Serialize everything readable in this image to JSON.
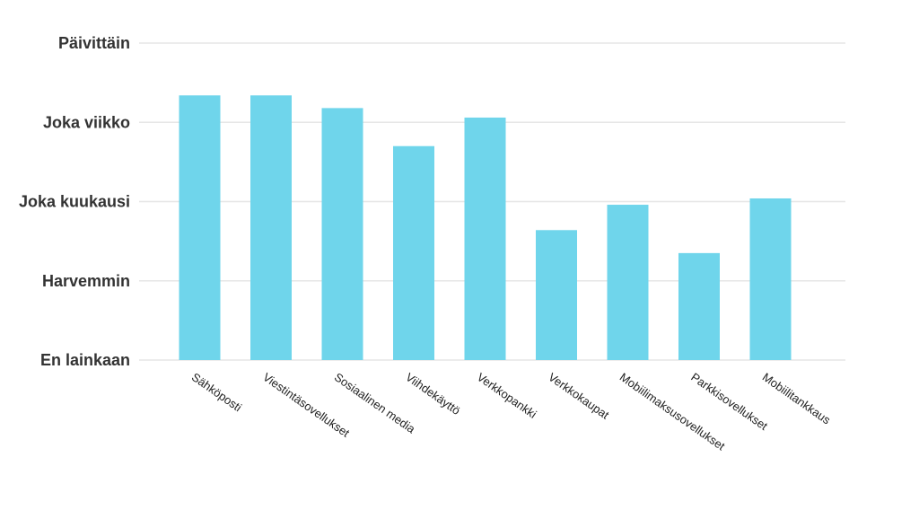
{
  "chart_data": {
    "type": "bar",
    "categories": [
      "Sähköposti",
      "Viestintäsovellukset",
      "Sosiaalinen media",
      "Viihdekäyttö",
      "Verkkopankki",
      "Verkkokaupat",
      "Mobiilimaksusovellukset",
      "Parkkisovellukset",
      "Mobiilitankkaus"
    ],
    "values": [
      3.34,
      3.34,
      3.18,
      2.7,
      3.06,
      1.64,
      1.96,
      1.35,
      2.04
    ],
    "y_tick_labels": [
      "En lainkaan",
      "Harvemmin",
      "Joka kuukausi",
      "Joka viikko",
      "Päivittäin"
    ],
    "ylim": [
      0,
      4
    ],
    "grid": true,
    "bar_color": "#6fd5eb",
    "title": "",
    "xlabel": "",
    "ylabel": ""
  }
}
